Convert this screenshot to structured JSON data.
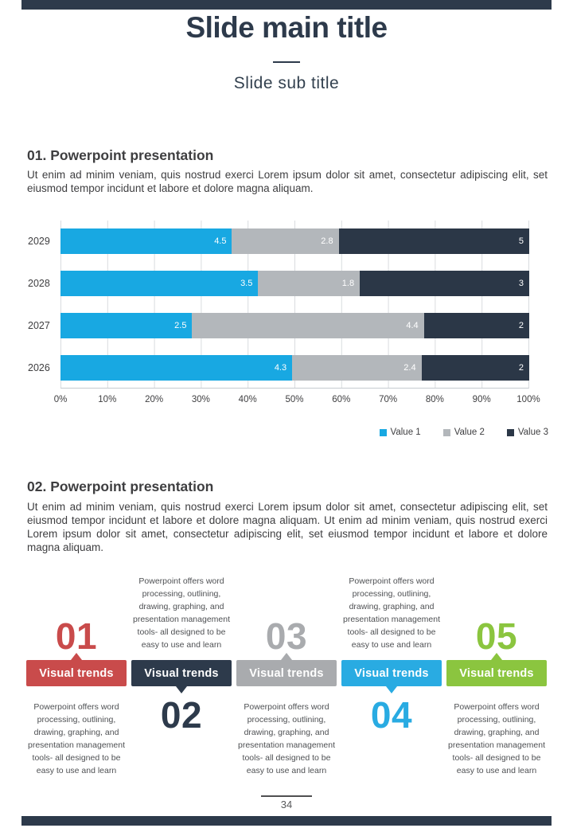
{
  "page": {
    "title": "Slide main title",
    "subtitle": "Slide sub title",
    "accent_color": "#2d3a4b",
    "background_color": "#ffffff"
  },
  "section1": {
    "heading": "01. Powerpoint presentation",
    "body": "Ut enim ad minim veniam, quis nostrud exerci  Lorem ipsum dolor sit amet, consectetur adipiscing elit, set eiusmod tempor incidunt et labore et dolore magna aliquam."
  },
  "section2": {
    "heading": "02. Powerpoint presentation",
    "body": "Ut enim ad minim veniam, quis nostrud exerci  Lorem ipsum dolor sit amet, consectetur adipiscing elit, set eiusmod tempor incidunt et labore et dolore magna aliquam. Ut enim ad minim veniam, quis nostrud exerci  Lorem ipsum dolor sit amet, consectetur adipiscing elit, set eiusmod tempor incidunt et labore et dolore magna aliquam."
  },
  "chart_data": {
    "type": "bar",
    "subtype": "horizontal-stacked-100-percent",
    "categories": [
      "2029",
      "2028",
      "2027",
      "2026"
    ],
    "series": [
      {
        "name": "Value 1",
        "color": "#18a8e2",
        "values": [
          4.5,
          3.5,
          2.5,
          4.3
        ]
      },
      {
        "name": "Value 2",
        "color": "#b3b7bb",
        "values": [
          2.8,
          1.8,
          4.4,
          2.4
        ]
      },
      {
        "name": "Value 3",
        "color": "#2b3747",
        "values": [
          5,
          3,
          2,
          2
        ]
      }
    ],
    "x_ticks": [
      "0%",
      "10%",
      "20%",
      "30%",
      "40%",
      "50%",
      "60%",
      "70%",
      "80%",
      "90%",
      "100%"
    ],
    "xlim": [
      0,
      100
    ],
    "grid": true,
    "value_labels": "inside-end, white",
    "legend_position": "bottom-right"
  },
  "trends": [
    {
      "number": "01",
      "label": "Visual trends",
      "color": "#c94b4b",
      "layout": "number-top",
      "text": "Powerpoint offers word processing, outlining, drawing, graphing, and presentation management tools- all designed to be easy to use and learn"
    },
    {
      "number": "02",
      "label": "Visual trends",
      "color": "#2d3a4b",
      "layout": "number-bottom",
      "text": "Powerpoint offers word processing, outlining, drawing, graphing, and presentation management tools- all designed to be easy to use and learn"
    },
    {
      "number": "03",
      "label": "Visual trends",
      "color": "#a9abae",
      "layout": "number-top",
      "text": "Powerpoint offers word processing, outlining, drawing, graphing, and presentation management tools- all designed to be easy to use and learn"
    },
    {
      "number": "04",
      "label": "Visual trends",
      "color": "#29abe2",
      "layout": "number-bottom",
      "text": "Powerpoint offers word processing, outlining, drawing, graphing, and presentation management tools- all designed to be easy to use and learn"
    },
    {
      "number": "05",
      "label": "Visual trends",
      "color": "#8bc53f",
      "layout": "number-top",
      "text": "Powerpoint offers word processing, outlining, drawing, graphing, and presentation management tools- all designed to be easy to use and learn"
    }
  ],
  "footer": {
    "page_number": "34"
  }
}
